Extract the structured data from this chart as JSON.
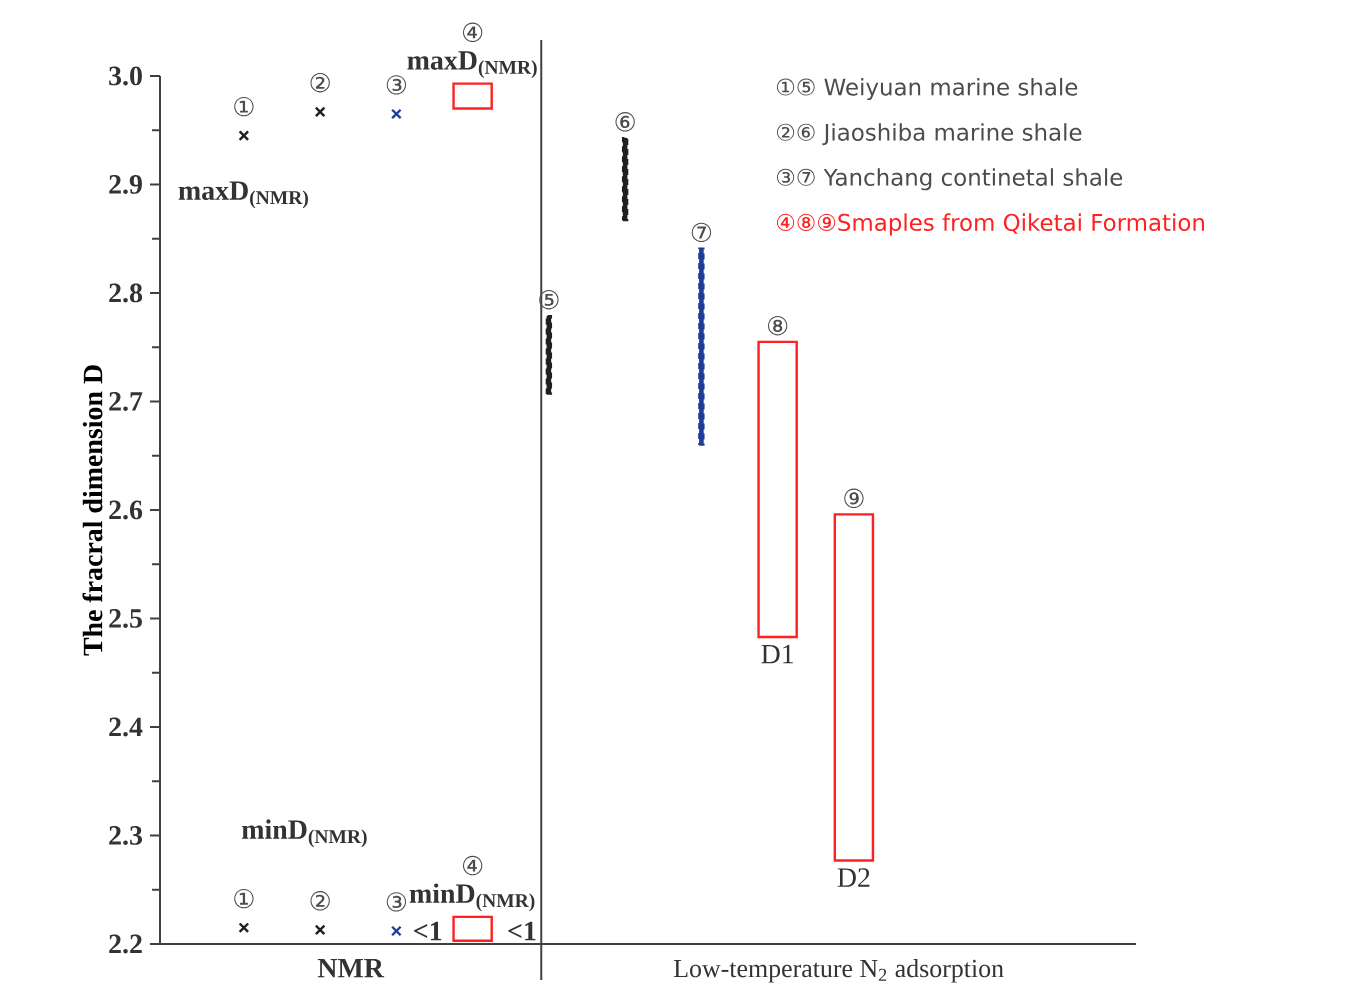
{
  "chart_data": {
    "type": "bar",
    "ylabel": "The fracral dimension D",
    "categories": [
      "①",
      "②",
      "③",
      "④",
      "⑤",
      "⑥",
      "⑦",
      "⑧",
      "⑨"
    ],
    "ylim": [
      2.2,
      3.0
    ],
    "yticks": [
      2.2,
      2.3,
      2.4,
      2.5,
      2.6,
      2.7,
      2.8,
      2.9,
      {
        "value": 3.0,
        "label": "3.0"
      }
    ],
    "series": [
      {
        "type": "scatter",
        "marker": "cross",
        "values": [
          2.945,
          2.967,
          2.965,
          null,
          null,
          null,
          null,
          null,
          null
        ],
        "colors": [
          "#231f20",
          "#231f20",
          "#1f3c98",
          null,
          null,
          null,
          null,
          null,
          null
        ]
      },
      {
        "type": "scatter",
        "marker": "cross",
        "values": [
          2.215,
          2.213,
          2.212,
          null,
          null,
          null,
          null,
          null,
          null
        ],
        "colors": [
          "#231f20",
          "#231f20",
          "#1f3c98",
          null,
          null,
          null,
          null,
          null,
          null
        ]
      },
      {
        "color": "#ff2020",
        "base": [
          null,
          null,
          null,
          2.97,
          null,
          null,
          null,
          2.483,
          2.277
        ],
        "values": [
          null,
          null,
          null,
          0.023,
          null,
          null,
          null,
          0.272,
          0.319
        ]
      },
      {
        "color": "#ff2020",
        "base": [
          null,
          null,
          null,
          2.203,
          null,
          null,
          null,
          null,
          null
        ],
        "values": [
          null,
          null,
          null,
          0.022,
          null,
          null,
          null,
          null,
          null
        ]
      },
      {
        "line_style": "dashed",
        "base": [
          null,
          null,
          null,
          null,
          2.707,
          2.867,
          2.66,
          null,
          null
        ],
        "values": [
          null,
          null,
          null,
          null,
          0.072,
          0.076,
          0.181,
          null,
          null
        ],
        "colors": [
          null,
          null,
          null,
          null,
          "#231f20",
          "#231f20",
          "#1f3c98",
          null,
          null
        ]
      }
    ],
    "annotations": [
      "NMR",
      "Low-temperature N$_{2}$ adsorption",
      "①⑤ Weiyuan marine shale",
      "②⑥ Jiaoshiba marine shale",
      "③⑦ Yanchang continetal shale",
      "④⑧⑨Smaples from Qiketai Formation",
      "maxD$_{(NMR)}$",
      "maxD$_{(NMR)}$",
      "minD$_{(NMR)}$",
      "minD$_{(NMR)}$",
      "<1",
      "<1",
      "D1",
      "D2"
    ]
  }
}
